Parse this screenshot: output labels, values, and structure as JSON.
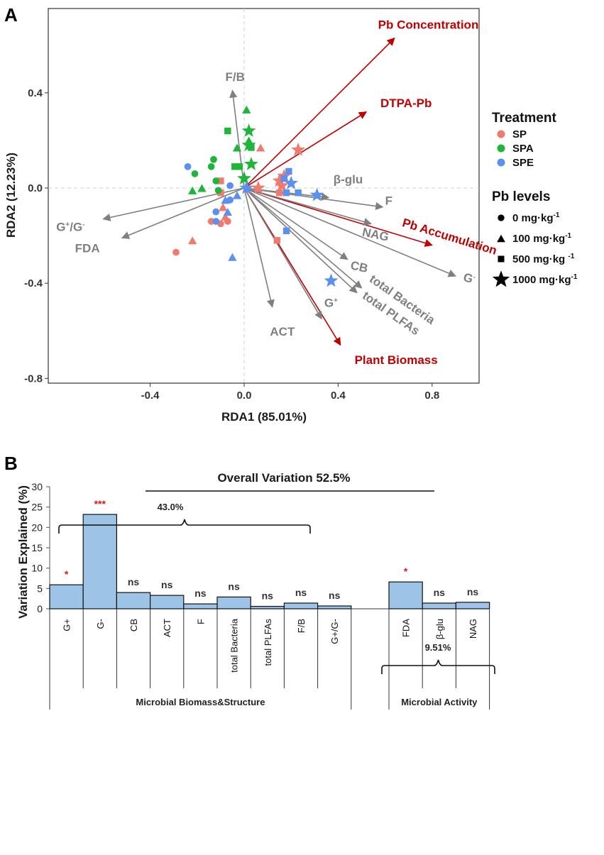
{
  "chart_data": [
    {
      "type": "scatter",
      "panel": "A",
      "xlabel": "RDA1 (85.01%)",
      "ylabel": "RDA2 (12.23%)",
      "xlim": [
        -0.87,
        1.0
      ],
      "ylim": [
        -0.82,
        0.78
      ],
      "xticks": [
        -0.4,
        0.0,
        0.4,
        0.8
      ],
      "xtick_labels": [
        "-0.4",
        "0.0",
        "0.4",
        "0.8"
      ],
      "yticks": [
        -0.8,
        -0.4,
        0.0,
        0.4
      ],
      "ytick_labels": [
        "-0.8",
        "-0.4",
        "0.0",
        "0.4"
      ],
      "arrow_origin": [
        0.0,
        0.0
      ],
      "arrows": [
        {
          "name": "Pb Concentration",
          "x": 0.64,
          "y": 0.63,
          "color": "#c00000",
          "label_x": 0.57,
          "label_y": 0.67,
          "anchor": "start",
          "rotate": 0
        },
        {
          "name": "DTPA-Pb",
          "x": 0.52,
          "y": 0.32,
          "color": "#c00000",
          "label_x": 0.58,
          "label_y": 0.34,
          "anchor": "start",
          "rotate": 0
        },
        {
          "name": "Pb Accumulation",
          "x": 0.8,
          "y": -0.24,
          "color": "#c00000",
          "label_x": 0.67,
          "label_y": -0.16,
          "anchor": "start",
          "rotate": 17
        },
        {
          "name": "Plant Biomass",
          "x": 0.41,
          "y": -0.66,
          "color": "#c00000",
          "label_x": 0.47,
          "label_y": -0.74,
          "anchor": "start",
          "rotate": 0
        },
        {
          "name": "F/B",
          "x": -0.05,
          "y": 0.41,
          "color": "#7f7f7f",
          "label_x": -0.08,
          "label_y": 0.45,
          "anchor": "start",
          "rotate": 0
        },
        {
          "name": "G+/G-",
          "x": -0.6,
          "y": -0.13,
          "color": "#7f7f7f",
          "label_x": -0.8,
          "label_y": -0.18,
          "anchor": "start",
          "rotate": 0
        },
        {
          "name": "FDA",
          "x": -0.52,
          "y": -0.21,
          "color": "#7f7f7f",
          "label_x": -0.72,
          "label_y": -0.27,
          "anchor": "start",
          "rotate": 0
        },
        {
          "name": "ACT",
          "x": 0.12,
          "y": -0.5,
          "color": "#7f7f7f",
          "label_x": 0.11,
          "label_y": -0.62,
          "anchor": "start",
          "rotate": 0
        },
        {
          "name": "β-glu",
          "x": 0.36,
          "y": -0.04,
          "color": "#7f7f7f",
          "label_x": 0.38,
          "label_y": 0.02,
          "anchor": "start",
          "rotate": 0
        },
        {
          "name": "F",
          "x": 0.59,
          "y": -0.08,
          "color": "#7f7f7f",
          "label_x": 0.6,
          "label_y": -0.07,
          "anchor": "start",
          "rotate": 0
        },
        {
          "name": "NAG",
          "x": 0.54,
          "y": -0.15,
          "color": "#7f7f7f",
          "label_x": 0.5,
          "label_y": -0.2,
          "anchor": "start",
          "rotate": 12
        },
        {
          "name": "CB",
          "x": 0.44,
          "y": -0.3,
          "color": "#7f7f7f",
          "label_x": 0.45,
          "label_y": -0.34,
          "anchor": "start",
          "rotate": 12
        },
        {
          "name": "G-",
          "x": 0.9,
          "y": -0.37,
          "color": "#7f7f7f",
          "label_x": 0.93,
          "label_y": -0.39,
          "anchor": "start",
          "rotate": 14
        },
        {
          "name": "total Bacteria",
          "x": 0.5,
          "y": -0.42,
          "color": "#7f7f7f",
          "label_x": 0.53,
          "label_y": -0.39,
          "anchor": "start",
          "rotate": 35
        },
        {
          "name": "total PLFAs",
          "x": 0.48,
          "y": -0.44,
          "color": "#7f7f7f",
          "label_x": 0.5,
          "label_y": -0.46,
          "anchor": "start",
          "rotate": 35
        },
        {
          "name": "G+",
          "x": 0.33,
          "y": -0.55,
          "color": "#7f7f7f",
          "label_x": 0.37,
          "label_y": -0.5,
          "anchor": "middle",
          "rotate": 0
        }
      ],
      "point_series": [
        {
          "name": "SP",
          "color": "#f07a6e",
          "points": [
            [
              -0.29,
              -0.27,
              "circle"
            ],
            [
              -0.1,
              -0.15,
              "circle"
            ],
            [
              -0.14,
              -0.14,
              "circle"
            ],
            [
              -0.07,
              -0.14,
              "circle"
            ],
            [
              -0.22,
              -0.22,
              "triangle"
            ],
            [
              -0.09,
              -0.08,
              "triangle"
            ],
            [
              -0.08,
              -0.12,
              "triangle"
            ],
            [
              -0.1,
              0.03,
              "square"
            ],
            [
              -0.1,
              -0.02,
              "square"
            ],
            [
              0.07,
              0.17,
              "triangle"
            ],
            [
              0.14,
              -0.22,
              "square"
            ],
            [
              0.15,
              0.03,
              "star"
            ],
            [
              0.17,
              0.05,
              "star"
            ],
            [
              0.16,
              0.01,
              "star"
            ],
            [
              0.23,
              0.16,
              "star"
            ],
            [
              0.06,
              0.0,
              "star"
            ],
            [
              0.15,
              -0.02,
              "square"
            ]
          ]
        },
        {
          "name": "SPA",
          "color": "#1fb53a",
          "points": [
            [
              -0.13,
              0.12,
              "circle"
            ],
            [
              -0.21,
              0.06,
              "circle"
            ],
            [
              -0.14,
              0.09,
              "circle"
            ],
            [
              -0.12,
              0.03,
              "circle"
            ],
            [
              -0.18,
              -0.0,
              "triangle"
            ],
            [
              -0.22,
              -0.01,
              "triangle"
            ],
            [
              0.01,
              0.33,
              "triangle"
            ],
            [
              -0.03,
              0.17,
              "triangle"
            ],
            [
              -0.07,
              0.24,
              "square"
            ],
            [
              -0.04,
              0.09,
              "square"
            ],
            [
              -0.02,
              0.09,
              "square"
            ],
            [
              0.03,
              0.17,
              "square"
            ],
            [
              0.02,
              0.24,
              "star"
            ],
            [
              0.02,
              0.18,
              "star"
            ],
            [
              0.03,
              0.1,
              "star"
            ],
            [
              0.0,
              0.04,
              "star"
            ],
            [
              -0.11,
              -0.01,
              "circle"
            ],
            [
              0.02,
              0.2,
              "triangle"
            ]
          ]
        },
        {
          "name": "SPE",
          "color": "#5b8ff0",
          "points": [
            [
              -0.24,
              0.09,
              "circle"
            ],
            [
              -0.12,
              -0.1,
              "circle"
            ],
            [
              -0.12,
              -0.14,
              "circle"
            ],
            [
              -0.06,
              -0.05,
              "circle"
            ],
            [
              -0.06,
              0.01,
              "circle"
            ],
            [
              -0.05,
              -0.29,
              "triangle"
            ],
            [
              -0.07,
              -0.1,
              "triangle"
            ],
            [
              -0.03,
              -0.03,
              "triangle"
            ],
            [
              -0.08,
              -0.05,
              "triangle"
            ],
            [
              0.19,
              0.07,
              "square"
            ],
            [
              0.18,
              -0.02,
              "square"
            ],
            [
              0.23,
              -0.02,
              "square"
            ],
            [
              0.18,
              -0.18,
              "square"
            ],
            [
              0.01,
              0.0,
              "star"
            ],
            [
              0.2,
              0.02,
              "star"
            ],
            [
              0.31,
              -0.03,
              "star"
            ],
            [
              0.37,
              -0.39,
              "star"
            ],
            [
              0.17,
              0.04,
              "square"
            ]
          ]
        }
      ],
      "legend": {
        "treatment_title": "Treatment",
        "treatments": [
          {
            "label": "SP",
            "color": "#f07a6e"
          },
          {
            "label": "SPA",
            "color": "#1fb53a"
          },
          {
            "label": "SPE",
            "color": "#5b8ff0"
          }
        ],
        "levels_title": "Pb levels",
        "levels": [
          {
            "shape": "circle",
            "value": "0 mg·kg",
            "sup": "-1"
          },
          {
            "shape": "triangle",
            "value": "100 mg·kg",
            "sup": "-1"
          },
          {
            "shape": "square",
            "value": "500 mg·kg ",
            "sup": "-1"
          },
          {
            "shape": "star",
            "value": "1000 mg·kg",
            "sup": "-1"
          }
        ]
      }
    },
    {
      "type": "bar",
      "panel": "B",
      "title": "Overall  Variation 52.5%",
      "ylabel": "Variation Explained (%)",
      "ylim": [
        0,
        30
      ],
      "yticks": [
        0,
        5,
        10,
        15,
        20,
        25,
        30
      ],
      "categories": [
        "G+",
        "G-",
        "CB",
        "ACT",
        "F",
        "total Bacteria",
        "total PLFAs",
        "F/B",
        "G+/G-",
        "FDA",
        "β-glu",
        "NAG"
      ],
      "values": [
        5.9,
        23.2,
        4.0,
        3.3,
        1.2,
        2.9,
        0.6,
        1.4,
        0.7,
        6.6,
        1.4,
        1.6
      ],
      "significance": [
        "*",
        "***",
        "ns",
        "ns",
        "ns",
        "ns",
        "ns",
        "ns",
        "ns",
        "*",
        "ns",
        "ns"
      ],
      "bar_color": "#9dc3e6",
      "groups": [
        {
          "label": "Microbial Biomass&Structure",
          "subtotal": "43.0%"
        },
        {
          "label": "Microbial Activity",
          "subtotal": "9.51%"
        }
      ]
    }
  ],
  "panel_labels": {
    "a": "A",
    "b": "B"
  }
}
